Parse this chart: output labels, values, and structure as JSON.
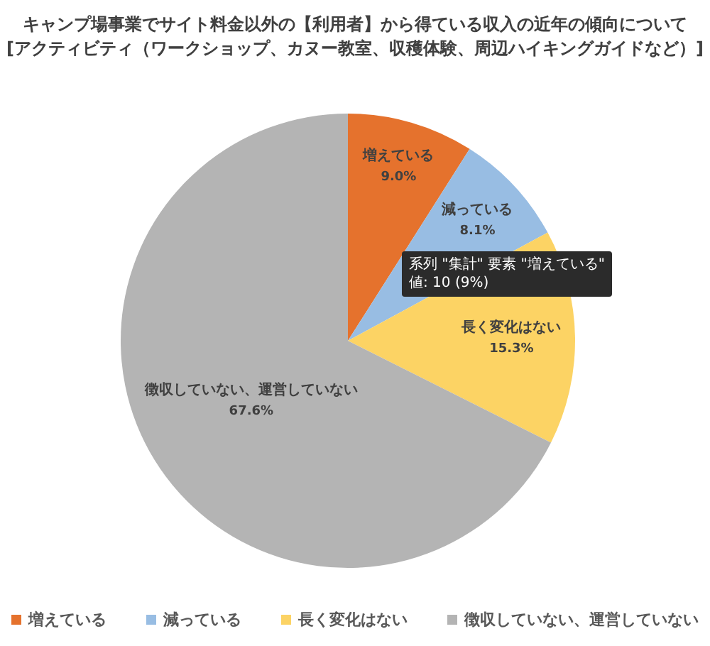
{
  "chart_data": {
    "type": "pie",
    "title": "キャンプ場事業でサイト料金以外の【利用者】から得ている収入の近年の傾向について",
    "subtitle": "[アクティビティ（ワークショップ、カヌー教室、収穫体験、周辺ハイキングガイドなど）]",
    "categories": [
      "増えている",
      "減っている",
      "長く変化はない",
      "徴収していない、運営していない"
    ],
    "values": [
      9.0,
      8.1,
      15.3,
      67.6
    ],
    "colors": [
      "#e5722d",
      "#98bde3",
      "#fcd364",
      "#b4b4b4"
    ],
    "value_labels": [
      "9.0%",
      "8.1%",
      "15.3%",
      "67.6%"
    ],
    "annotations": [
      "系列 \"集計\" 要素 \"増えている\"\n値: 10 (9%)"
    ],
    "legend": "bottom"
  }
}
